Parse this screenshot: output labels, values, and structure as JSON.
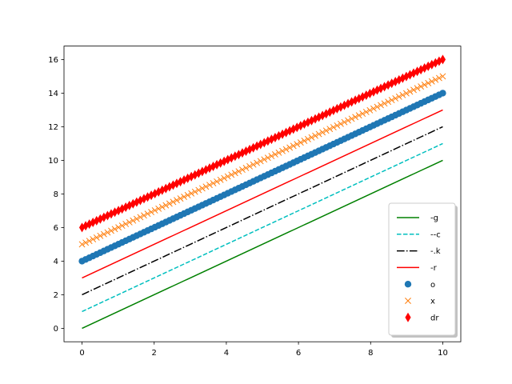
{
  "chart_data": {
    "type": "line",
    "title": "",
    "xlabel": "",
    "ylabel": "",
    "xlim": [
      -0.5,
      10.5
    ],
    "ylim": [
      -0.8,
      16.8
    ],
    "grid": false,
    "legend_position": "lower right",
    "x_ticks": [
      0,
      2,
      4,
      6,
      8,
      10
    ],
    "x_tick_labels": [
      "0",
      "2",
      "4",
      "6",
      "8",
      "10"
    ],
    "y_ticks": [
      0,
      2,
      4,
      6,
      8,
      10,
      12,
      14,
      16
    ],
    "y_tick_labels": [
      "0",
      "2",
      "4",
      "6",
      "8",
      "10",
      "12",
      "14",
      "16"
    ],
    "x": {
      "start": 0,
      "end": 10,
      "points": 100
    },
    "series": [
      {
        "name": "-g",
        "style": "solid line",
        "color": "#008000",
        "offset": 0,
        "y_start": 0,
        "y_end": 10
      },
      {
        "name": "--c",
        "style": "dashed line",
        "color": "#00bfbf",
        "offset": 1,
        "y_start": 1,
        "y_end": 11
      },
      {
        "name": "-.k",
        "style": "dash-dot line",
        "color": "#000000",
        "offset": 2,
        "y_start": 2,
        "y_end": 12
      },
      {
        "name": "-r",
        "style": "solid line",
        "color": "#ff0000",
        "offset": 3,
        "y_start": 3,
        "y_end": 13
      },
      {
        "name": "o",
        "style": "circle markers",
        "color": "#1f77b4",
        "offset": 4,
        "y_start": 4,
        "y_end": 14
      },
      {
        "name": "x",
        "style": "x markers",
        "color": "#ff7f0e",
        "offset": 5,
        "y_start": 5,
        "y_end": 15
      },
      {
        "name": "dr",
        "style": "red diamond markers",
        "color": "#ff0000",
        "offset": 6,
        "y_start": 6,
        "y_end": 16
      }
    ]
  },
  "legend": {
    "items": [
      {
        "label": "-g"
      },
      {
        "label": "--c"
      },
      {
        "label": "-.k"
      },
      {
        "label": "-r"
      },
      {
        "label": "o"
      },
      {
        "label": "x"
      },
      {
        "label": "dr"
      }
    ]
  }
}
